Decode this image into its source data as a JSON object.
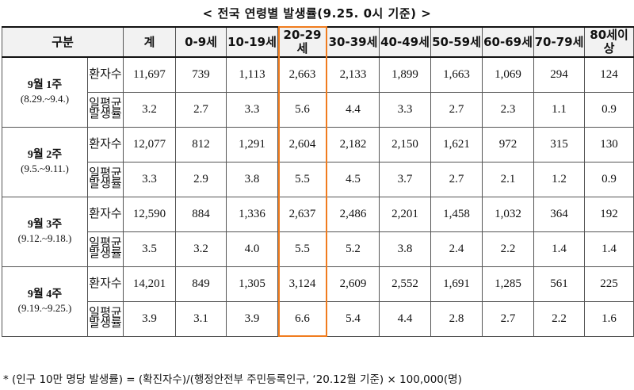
{
  "title": "< 전국 연령별 발생률(9.25. 0시 기준) >",
  "header": {
    "category": "구분",
    "columns": [
      "계",
      "0-9세",
      "10-19세",
      "20-29세",
      "30-39세",
      "40-49세",
      "50-59세",
      "60-69세",
      "70-79세",
      "80세이상"
    ]
  },
  "row_kinds": {
    "cases": "환자수",
    "rate": "일평균발생률"
  },
  "weeks": [
    {
      "label": "9월 1주",
      "range": "(8.29.~9.4.)",
      "cases": [
        "11,697",
        "739",
        "1,113",
        "2,663",
        "2,133",
        "1,899",
        "1,663",
        "1,069",
        "294",
        "124"
      ],
      "rate": [
        "3.2",
        "2.7",
        "3.3",
        "5.6",
        "4.4",
        "3.3",
        "2.7",
        "2.3",
        "1.1",
        "0.9"
      ]
    },
    {
      "label": "9월 2주",
      "range": "(9.5.~9.11.)",
      "cases": [
        "12,077",
        "812",
        "1,291",
        "2,604",
        "2,182",
        "2,150",
        "1,621",
        "972",
        "315",
        "130"
      ],
      "rate": [
        "3.3",
        "2.9",
        "3.8",
        "5.5",
        "4.5",
        "3.7",
        "2.7",
        "2.1",
        "1.2",
        "0.9"
      ]
    },
    {
      "label": "9월 3주",
      "range": "(9.12.~9.18.)",
      "cases": [
        "12,590",
        "884",
        "1,336",
        "2,637",
        "2,486",
        "2,201",
        "1,458",
        "1,032",
        "364",
        "192"
      ],
      "rate": [
        "3.5",
        "3.2",
        "4.0",
        "5.5",
        "5.2",
        "3.8",
        "2.4",
        "2.2",
        "1.4",
        "1.4"
      ]
    },
    {
      "label": "9월 4주",
      "range": "(9.19.~9.25.)",
      "cases": [
        "14,201",
        "849",
        "1,305",
        "3,124",
        "2,609",
        "2,552",
        "1,691",
        "1,285",
        "561",
        "225"
      ],
      "rate": [
        "3.9",
        "3.1",
        "3.9",
        "6.6",
        "5.4",
        "4.4",
        "2.8",
        "2.7",
        "2.2",
        "1.6"
      ]
    }
  ],
  "footnote": "* (인구 10만 명당 발생률) = (확진자수)/(행정안전부 주민등록인구, ‘20.12월 기준) × 100,000(명)",
  "colors": {
    "highlight_border": "#f07c1e",
    "header_bg": "#f2f2f2",
    "grid_line": "#555555"
  }
}
